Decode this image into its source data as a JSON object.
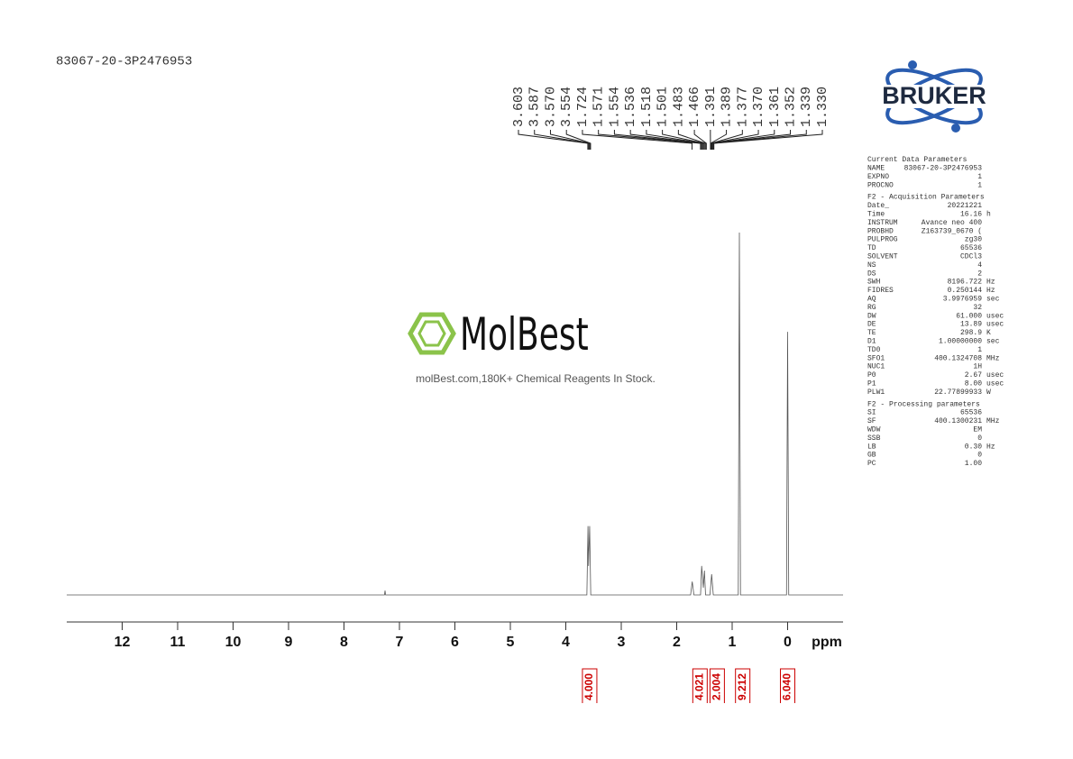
{
  "sample_id": "83067-20-3P2476953",
  "brand": "BRUKER",
  "watermark": {
    "logo": "MolBest",
    "tagline": "molBest.com,180K+ Chemical Reagents In Stock."
  },
  "parameters": [
    {
      "title": "Current Data Parameters",
      "rows": [
        [
          "NAME",
          "83067-20-3P2476953"
        ],
        [
          "EXPNO",
          "1"
        ],
        [
          "PROCNO",
          "1"
        ]
      ]
    },
    {
      "title": "F2 - Acquisition Parameters",
      "rows": [
        [
          "Date_",
          "20221221"
        ],
        [
          "Time",
          "16.16",
          "h"
        ],
        [
          "INSTRUM",
          "Avance neo 400"
        ],
        [
          "PROBHD",
          "Z163739_0670 ("
        ],
        [
          "PULPROG",
          "zg30"
        ],
        [
          "TD",
          "65536"
        ],
        [
          "SOLVENT",
          "CDCl3"
        ],
        [
          "NS",
          "4"
        ],
        [
          "DS",
          "2"
        ],
        [
          "SWH",
          "8196.722",
          "Hz"
        ],
        [
          "FIDRES",
          "0.250144",
          "Hz"
        ],
        [
          "AQ",
          "3.9976959",
          "sec"
        ],
        [
          "RG",
          "32"
        ],
        [
          "DW",
          "61.000",
          "usec"
        ],
        [
          "DE",
          "13.89",
          "usec"
        ],
        [
          "TE",
          "298.9",
          "K"
        ],
        [
          "D1",
          "1.00000000",
          "sec"
        ],
        [
          "TD0",
          "1"
        ],
        [
          "SFO1",
          "400.1324708",
          "MHz"
        ],
        [
          "NUC1",
          "1H"
        ],
        [
          "P0",
          "2.67",
          "usec"
        ],
        [
          "P1",
          "8.00",
          "usec"
        ],
        [
          "PLW1",
          "22.77899933",
          "W"
        ]
      ]
    },
    {
      "title": "F2 - Processing parameters",
      "rows": [
        [
          "SI",
          "65536"
        ],
        [
          "SF",
          "400.1300231",
          "MHz"
        ],
        [
          "WDW",
          "EM"
        ],
        [
          "SSB",
          "0"
        ],
        [
          "LB",
          "0.30",
          "Hz"
        ],
        [
          "GB",
          "0"
        ],
        [
          "PC",
          "1.00"
        ]
      ]
    }
  ],
  "chart_data": {
    "type": "nmr",
    "x_label": "ppm",
    "xlim": [
      13,
      -1
    ],
    "xticks": [
      12,
      11,
      10,
      9,
      8,
      7,
      6,
      5,
      4,
      3,
      2,
      1,
      0
    ],
    "ylim": [
      0,
      100
    ],
    "color": "#555555",
    "spectrum": {
      "x": [
        13,
        7.27,
        7.26,
        7.25,
        3.62,
        3.6,
        3.59,
        3.57,
        3.55,
        1.75,
        1.72,
        1.69,
        1.57,
        1.55,
        1.52,
        1.5,
        1.48,
        1.4,
        1.37,
        1.34,
        0.89,
        0.87,
        0.85,
        0.02,
        0,
        -0.02,
        -1
      ],
      "values": [
        0,
        0,
        1.2,
        0,
        0,
        19,
        8,
        19,
        0,
        0,
        3.7,
        0,
        0,
        8,
        2,
        6.7,
        0,
        0,
        5.7,
        0,
        0,
        100,
        0,
        0,
        72.6,
        0,
        0
      ]
    },
    "peaks": {
      "values": [
        3.603,
        3.587,
        3.57,
        3.554,
        1.724,
        1.571,
        1.554,
        1.536,
        1.518,
        1.501,
        1.483,
        1.466,
        1.391,
        1.389,
        1.377,
        1.37,
        1.361,
        1.352,
        1.339,
        1.33
      ],
      "value_labels": [
        "3.603",
        "3.587",
        "3.570",
        "3.554",
        "1.724",
        "1.571",
        "1.554",
        "1.536",
        "1.518",
        "1.501",
        "1.483",
        "1.466",
        "1.391",
        "1.389",
        "1.377",
        "1.370",
        "1.361",
        "1.352",
        "1.339",
        "1.330"
      ]
    },
    "integrals": {
      "color": "#cc0000",
      "x": [
        3.57,
        1.58,
        1.27,
        0.81,
        0
      ],
      "values": [
        4,
        4.021,
        2.004,
        9.212,
        6.04
      ],
      "value_labels": [
        "4.000",
        "4.021",
        "2.004",
        "9.212",
        "6.040"
      ]
    }
  }
}
